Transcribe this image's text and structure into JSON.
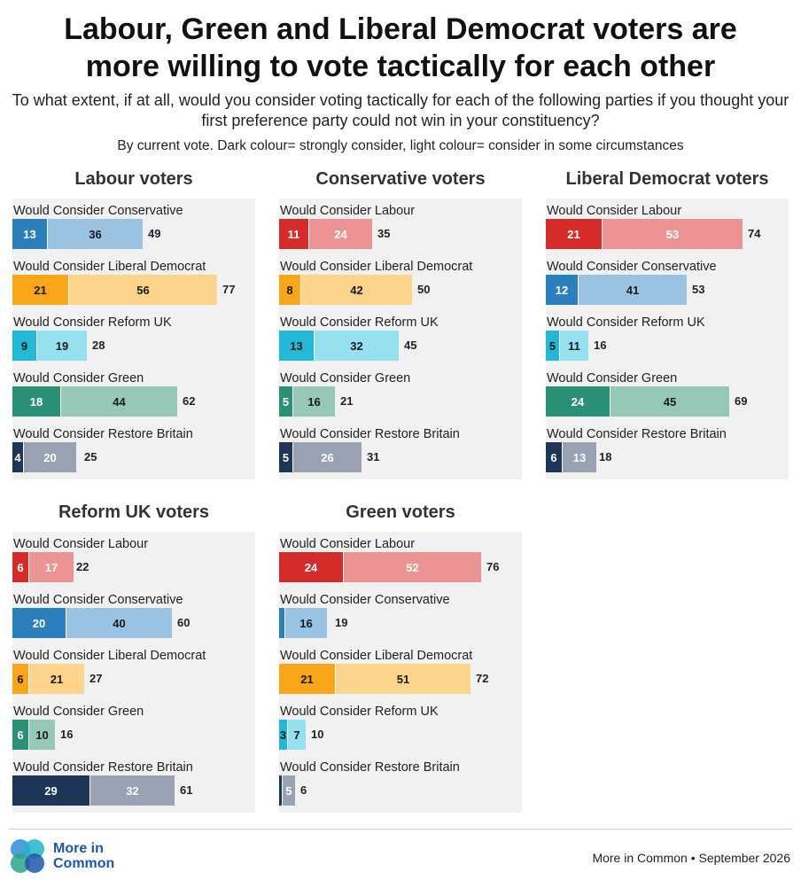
{
  "title_line1": "Labour, Green and Liberal Democrat voters are",
  "title_line2": "more willing to vote tactically for each other",
  "subtitle": "To what extent, if at all, would you consider voting tactically for each of the following parties if you thought your first preference party could not win in your constituency?",
  "note": "By current vote. Dark colour= strongly consider, light colour= consider in some circumstances",
  "footer": "More in Common • September 2026",
  "logo_text_line1": "More in",
  "logo_text_line2": "Common",
  "colors": {
    "Labour": {
      "dark": "#d52b2b",
      "light": "#ec9494",
      "dark_text": "#ffffff",
      "light_text": "#ffffff"
    },
    "Conservative": {
      "dark": "#2b7fbd",
      "light": "#9ac2e2",
      "dark_text": "#ffffff",
      "light_text": "#1a1a1a"
    },
    "Liberal Democrat": {
      "dark": "#faa61a",
      "light": "#fdd48c",
      "dark_text": "#1a1a1a",
      "light_text": "#1a1a1a"
    },
    "Reform UK": {
      "dark": "#22b8d6",
      "light": "#96e1f0",
      "dark_text": "#1a1a1a",
      "light_text": "#1a1a1a"
    },
    "Green": {
      "dark": "#2a9177",
      "light": "#96c8b8",
      "dark_text": "#ffffff",
      "light_text": "#1a1a1a"
    },
    "Restore Britain": {
      "dark": "#1d3557",
      "light": "#98a2b3",
      "dark_text": "#ffffff",
      "light_text": "#ffffff"
    }
  },
  "chart_data": [
    {
      "type": "bar",
      "stacked": true,
      "title": "Labour voters",
      "rows": [
        {
          "label": "Would Consider Conservative",
          "party": "Conservative",
          "strongly": 13,
          "some": 36,
          "total": 49
        },
        {
          "label": "Would Consider Liberal Democrat",
          "party": "Liberal Democrat",
          "strongly": 21,
          "some": 56,
          "total": 77
        },
        {
          "label": "Would Consider Reform UK",
          "party": "Reform UK",
          "strongly": 9,
          "some": 19,
          "total": 28
        },
        {
          "label": "Would Consider Green",
          "party": "Green",
          "strongly": 18,
          "some": 44,
          "total": 62
        },
        {
          "label": "Would Consider Restore Britain",
          "party": "Restore Britain",
          "strongly": 4,
          "some": 20,
          "total": 25
        }
      ]
    },
    {
      "type": "bar",
      "stacked": true,
      "title": "Conservative voters",
      "rows": [
        {
          "label": "Would Consider Labour",
          "party": "Labour",
          "strongly": 11,
          "some": 24,
          "total": 35
        },
        {
          "label": "Would Consider Liberal Democrat",
          "party": "Liberal Democrat",
          "strongly": 8,
          "some": 42,
          "total": 50
        },
        {
          "label": "Would Consider Reform UK",
          "party": "Reform UK",
          "strongly": 13,
          "some": 32,
          "total": 45
        },
        {
          "label": "Would Consider Green",
          "party": "Green",
          "strongly": 5,
          "some": 16,
          "total": 21
        },
        {
          "label": "Would Consider Restore Britain",
          "party": "Restore Britain",
          "strongly": 5,
          "some": 26,
          "total": 31
        }
      ]
    },
    {
      "type": "bar",
      "stacked": true,
      "title": "Liberal Democrat voters",
      "rows": [
        {
          "label": "Would Consider Labour",
          "party": "Labour",
          "strongly": 21,
          "some": 53,
          "total": 74
        },
        {
          "label": "Would Consider Conservative",
          "party": "Conservative",
          "strongly": 12,
          "some": 41,
          "total": 53
        },
        {
          "label": "Would Consider Reform UK",
          "party": "Reform UK",
          "strongly": 5,
          "some": 11,
          "total": 16
        },
        {
          "label": "Would Consider Green",
          "party": "Green",
          "strongly": 24,
          "some": 45,
          "total": 69
        },
        {
          "label": "Would Consider Restore Britain",
          "party": "Restore Britain",
          "strongly": 6,
          "some": 13,
          "total": 18
        }
      ]
    },
    {
      "type": "bar",
      "stacked": true,
      "title": "Reform UK voters",
      "rows": [
        {
          "label": "Would Consider Labour",
          "party": "Labour",
          "strongly": 6,
          "some": 17,
          "total": 22
        },
        {
          "label": "Would Consider Conservative",
          "party": "Conservative",
          "strongly": 20,
          "some": 40,
          "total": 60
        },
        {
          "label": "Would Consider Liberal Democrat",
          "party": "Liberal Democrat",
          "strongly": 6,
          "some": 21,
          "total": 27
        },
        {
          "label": "Would Consider Green",
          "party": "Green",
          "strongly": 6,
          "some": 10,
          "total": 16
        },
        {
          "label": "Would Consider Restore Britain",
          "party": "Restore Britain",
          "strongly": 29,
          "some": 32,
          "total": 61
        }
      ]
    },
    {
      "type": "bar",
      "stacked": true,
      "title": "Green voters",
      "rows": [
        {
          "label": "Would Consider Labour",
          "party": "Labour",
          "strongly": 24,
          "some": 52,
          "total": 76
        },
        {
          "label": "Would Consider Conservative",
          "party": "Conservative",
          "strongly": 2,
          "some": 16,
          "total": 19
        },
        {
          "label": "Would Consider Liberal Democrat",
          "party": "Liberal Democrat",
          "strongly": 21,
          "some": 51,
          "total": 72
        },
        {
          "label": "Would Consider Reform UK",
          "party": "Reform UK",
          "strongly": 3,
          "some": 7,
          "total": 10
        },
        {
          "label": "Would Consider Restore Britain",
          "party": "Restore Britain",
          "strongly": 1,
          "some": 5,
          "total": 6
        }
      ]
    }
  ]
}
